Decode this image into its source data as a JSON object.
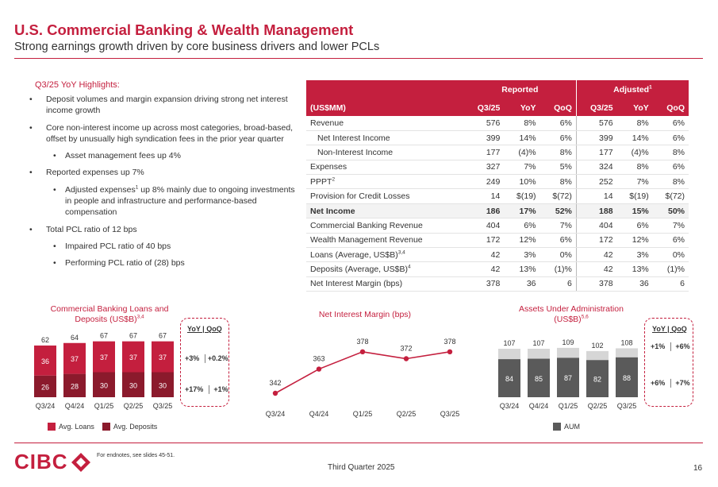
{
  "header": {
    "title": "U.S. Commercial Banking & Wealth Management",
    "subtitle": "Strong earnings growth driven by core business drivers and lower PCLs"
  },
  "highlights": {
    "title": "Q3/25 YoY Highlights:",
    "b1": "Deposit volumes and margin expansion driving strong net interest income growth",
    "b2": "Core non-interest income up across most categories, broad-based, offset by unusually high syndication fees in the prior year quarter",
    "b2a": "Asset management fees up 4%",
    "b3": "Reported expenses up 7%",
    "b3a_pre": "Adjusted expenses",
    "b3a_sup": "1",
    "b3a_post": " up 8% mainly due to ongoing investments in people and infrastructure and performance-based compensation",
    "b4": "Total PCL ratio of 12 bps",
    "b4a": "Impaired PCL ratio of 40 bps",
    "b4b": "Performing PCL ratio of (28) bps"
  },
  "table": {
    "group_reported": "Reported",
    "group_adjusted": "Adjusted",
    "group_adjusted_sup": "1",
    "unit": "(US$MM)",
    "cols": [
      "Q3/25",
      "YoY",
      "QoQ",
      "Q3/25",
      "YoY",
      "QoQ"
    ],
    "rows": [
      {
        "label": "Revenue",
        "sup": "",
        "indent": false,
        "bold": false,
        "v": [
          "576",
          "8%",
          "6%",
          "576",
          "8%",
          "6%"
        ]
      },
      {
        "label": "Net Interest Income",
        "sup": "",
        "indent": true,
        "bold": false,
        "v": [
          "399",
          "14%",
          "6%",
          "399",
          "14%",
          "6%"
        ]
      },
      {
        "label": "Non-Interest Income",
        "sup": "",
        "indent": true,
        "bold": false,
        "v": [
          "177",
          "(4)%",
          "8%",
          "177",
          "(4)%",
          "8%"
        ]
      },
      {
        "label": "Expenses",
        "sup": "",
        "indent": false,
        "bold": false,
        "v": [
          "327",
          "7%",
          "5%",
          "324",
          "8%",
          "6%"
        ]
      },
      {
        "label": "PPPT",
        "sup": "2",
        "indent": false,
        "bold": false,
        "v": [
          "249",
          "10%",
          "8%",
          "252",
          "7%",
          "8%"
        ]
      },
      {
        "label": "Provision for Credit Losses",
        "sup": "",
        "indent": false,
        "bold": false,
        "v": [
          "14",
          "$(19)",
          "$(72)",
          "14",
          "$(19)",
          "$(72)"
        ]
      },
      {
        "label": "Net Income",
        "sup": "",
        "indent": false,
        "bold": true,
        "v": [
          "186",
          "17%",
          "52%",
          "188",
          "15%",
          "50%"
        ]
      },
      {
        "label": "Commercial Banking Revenue",
        "sup": "",
        "indent": false,
        "bold": false,
        "v": [
          "404",
          "6%",
          "7%",
          "404",
          "6%",
          "7%"
        ]
      },
      {
        "label": "Wealth Management Revenue",
        "sup": "",
        "indent": false,
        "bold": false,
        "v": [
          "172",
          "12%",
          "6%",
          "172",
          "12%",
          "6%"
        ]
      },
      {
        "label": "Loans (Average, US$B)",
        "sup": "3,4",
        "indent": false,
        "bold": false,
        "v": [
          "42",
          "3%",
          "0%",
          "42",
          "3%",
          "0%"
        ]
      },
      {
        "label": "Deposits (Average, US$B)",
        "sup": "4",
        "indent": false,
        "bold": false,
        "v": [
          "42",
          "13%",
          "(1)%",
          "42",
          "13%",
          "(1)%"
        ]
      },
      {
        "label": "Net Interest Margin (bps)",
        "sup": "",
        "indent": false,
        "bold": false,
        "v": [
          "378",
          "36",
          "6",
          "378",
          "36",
          "6"
        ]
      }
    ]
  },
  "colors": {
    "brand": "#c41f3e",
    "dark_red": "#8b1a2c",
    "aum_dark": "#5a5a5a",
    "aua_light": "#d6d6d6"
  },
  "chart_data": [
    {
      "type": "bar",
      "title": "Commercial Banking Loans and Deposits (US$B)",
      "title_sup": "3,4",
      "stacked": true,
      "categories": [
        "Q3/24",
        "Q4/24",
        "Q1/25",
        "Q2/25",
        "Q3/25"
      ],
      "series": [
        {
          "name": "Avg. Loans",
          "values": [
            36,
            37,
            37,
            37,
            37
          ]
        },
        {
          "name": "Avg. Deposits",
          "values": [
            26,
            28,
            30,
            30,
            30
          ]
        }
      ],
      "totals": [
        62,
        64,
        67,
        67,
        67
      ],
      "growth_header": "YoY | QoQ",
      "growth": [
        {
          "yoy": "+3%",
          "qoq": "+0.2%"
        },
        {
          "yoy": "+17%",
          "qoq": "+1%"
        }
      ]
    },
    {
      "type": "line",
      "title": "Net Interest Margin (bps)",
      "categories": [
        "Q3/24",
        "Q4/24",
        "Q1/25",
        "Q2/25",
        "Q3/25"
      ],
      "values": [
        342,
        363,
        378,
        372,
        378
      ]
    },
    {
      "type": "bar",
      "title": "Assets Under Administration (US$B)",
      "title_sup": "5,6",
      "categories": [
        "Q3/24",
        "Q4/24",
        "Q1/25",
        "Q2/25",
        "Q3/25"
      ],
      "series": [
        {
          "name": "AUM",
          "values": [
            84,
            85,
            87,
            82,
            88
          ]
        }
      ],
      "totals": [
        107,
        107,
        109,
        102,
        108
      ],
      "growth_header": "YoY | QoQ",
      "growth": [
        {
          "yoy": "+1%",
          "qoq": "+6%"
        },
        {
          "yoy": "+6%",
          "qoq": "+7%"
        }
      ]
    }
  ],
  "footer": {
    "logo": "CIBC",
    "endnote": "For endnotes, see slides 45-51.",
    "quarter": "Third Quarter 2025",
    "page": "16"
  }
}
